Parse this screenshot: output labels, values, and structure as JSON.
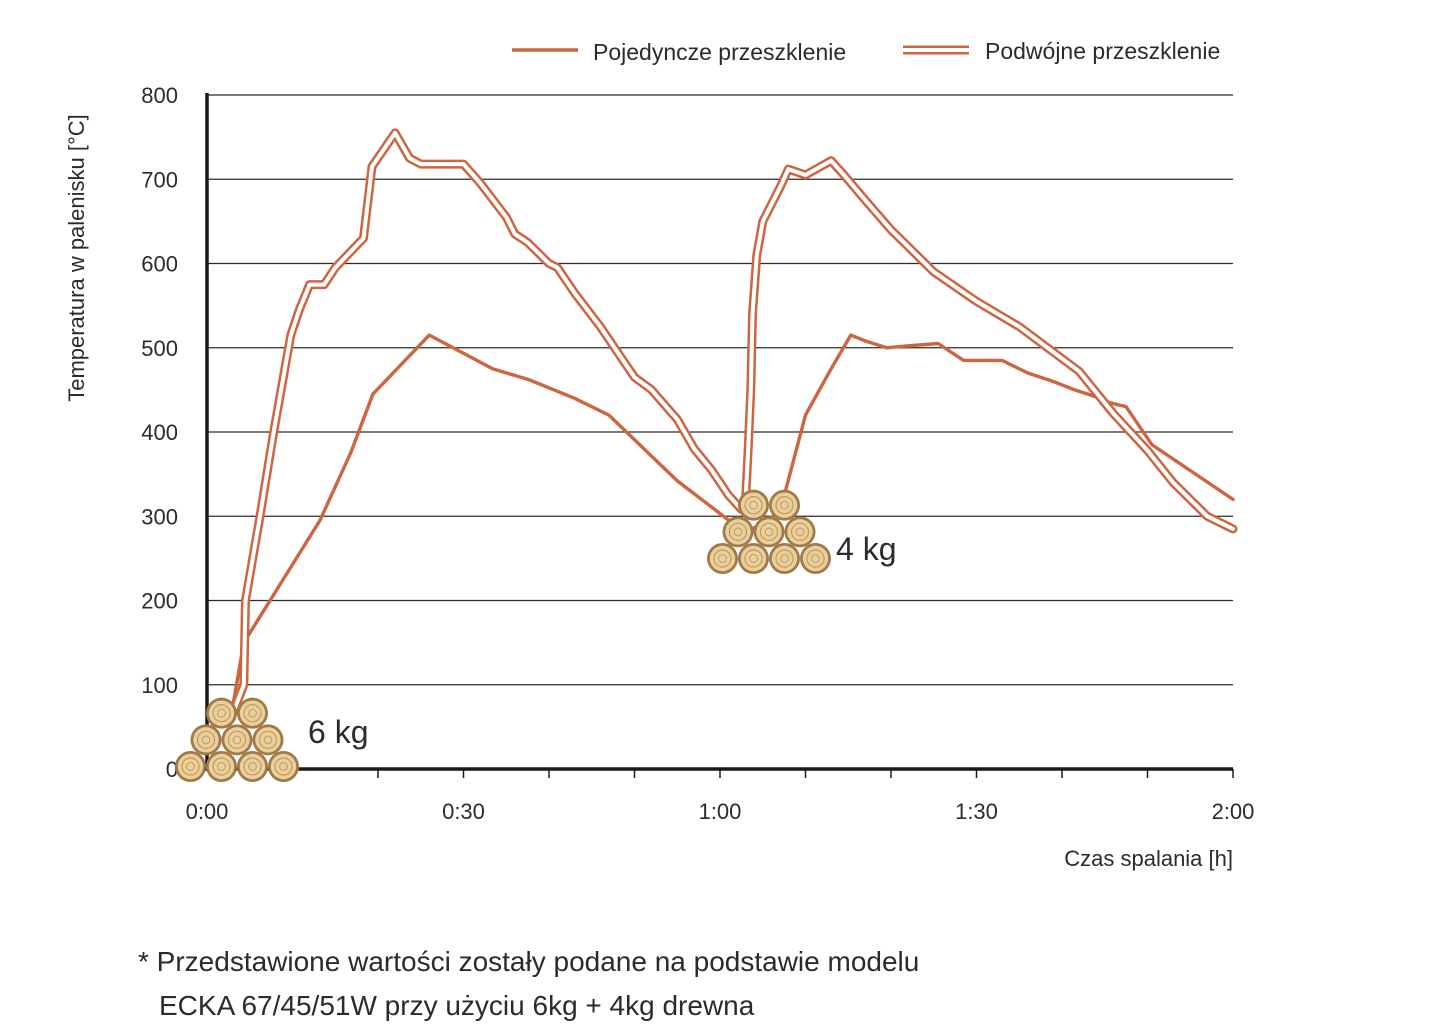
{
  "chart_data": {
    "type": "line",
    "xlabel": "Czas spalania [h]",
    "ylabel": "Temperatura w palenisku [°C]",
    "x_ticks": [
      "0:00",
      "0:30",
      "1:00",
      "1:30",
      "2:00"
    ],
    "x_tick_values": [
      0,
      30,
      60,
      90,
      120
    ],
    "x_unit": "minutes",
    "xlim": [
      0,
      120
    ],
    "y_ticks": [
      "0",
      "100",
      "200",
      "300",
      "400",
      "500",
      "600",
      "700",
      "800"
    ],
    "ylim": [
      0,
      800
    ],
    "grid": "horizontal",
    "legend_position": "top-right",
    "colors": {
      "line": "#cc6640",
      "axis": "#1a1a1a",
      "grid": "#2b2b2b",
      "wood": "#c9a46a"
    },
    "series": [
      {
        "name": "Pojedyncze przeszklenie",
        "style": "single",
        "x": [
          2.6,
          4.3,
          13.2,
          16.8,
          19.4,
          26.0,
          33.4,
          37.7,
          43.0,
          47.0,
          55.0,
          63.0,
          67.0,
          70.0,
          73.0,
          75.3,
          77.0,
          79.5,
          81.7,
          85.5,
          88.5,
          90.0,
          93.0,
          96.0,
          99.0,
          101.5,
          104.5,
          105.5,
          107.5,
          110.5,
          120.0
        ],
        "y": [
          50,
          150,
          295,
          375,
          445,
          515,
          475,
          462,
          440,
          420,
          342,
          280,
          305,
          420,
          475,
          515,
          508,
          500,
          502,
          505,
          485,
          485,
          485,
          470,
          460,
          450,
          440,
          435,
          430,
          385,
          320
        ]
      },
      {
        "name": "Podwójne przeszklenie",
        "style": "double",
        "x": [
          2.8,
          4.3,
          4.5,
          6.2,
          7.8,
          9.8,
          10.8,
          12.0,
          13.7,
          15.0,
          18.3,
          19.3,
          22.0,
          23.7,
          25.0,
          30.0,
          32.0,
          35.0,
          36.0,
          37.5,
          40.0,
          41.0,
          43.0,
          46.0,
          50.0,
          52.0,
          55.0,
          57.0,
          59.0,
          61.0,
          62.5,
          63.0,
          63.3,
          63.6,
          63.8,
          64.3,
          65.0,
          67.0,
          68.0,
          70.0,
          73.0,
          74.5,
          77.0,
          80.0,
          85.0,
          90.0,
          95.0,
          102.0,
          106.0,
          110.0,
          113.0,
          117.0,
          120.0
        ],
        "y": [
          60,
          100,
          200,
          300,
          400,
          515,
          545,
          575,
          575,
          595,
          630,
          715,
          755,
          725,
          718,
          718,
          695,
          655,
          635,
          625,
          600,
          595,
          565,
          525,
          465,
          450,
          415,
          380,
          355,
          325,
          308,
          320,
          380,
          450,
          540,
          610,
          650,
          690,
          712,
          705,
          722,
          705,
          675,
          640,
          590,
          555,
          525,
          472,
          422,
          378,
          340,
          300,
          285
        ]
      }
    ],
    "annotations": [
      {
        "label": "6 kg",
        "x": 0,
        "y": 0
      },
      {
        "label": "4 kg",
        "x": 65,
        "y": 300
      }
    ]
  },
  "footnote": {
    "line1": "* Przedstawione wartości zostały podane na podstawie modelu",
    "line2": "ECKA 67/45/51W przy użyciu 6kg + 4kg drewna"
  }
}
